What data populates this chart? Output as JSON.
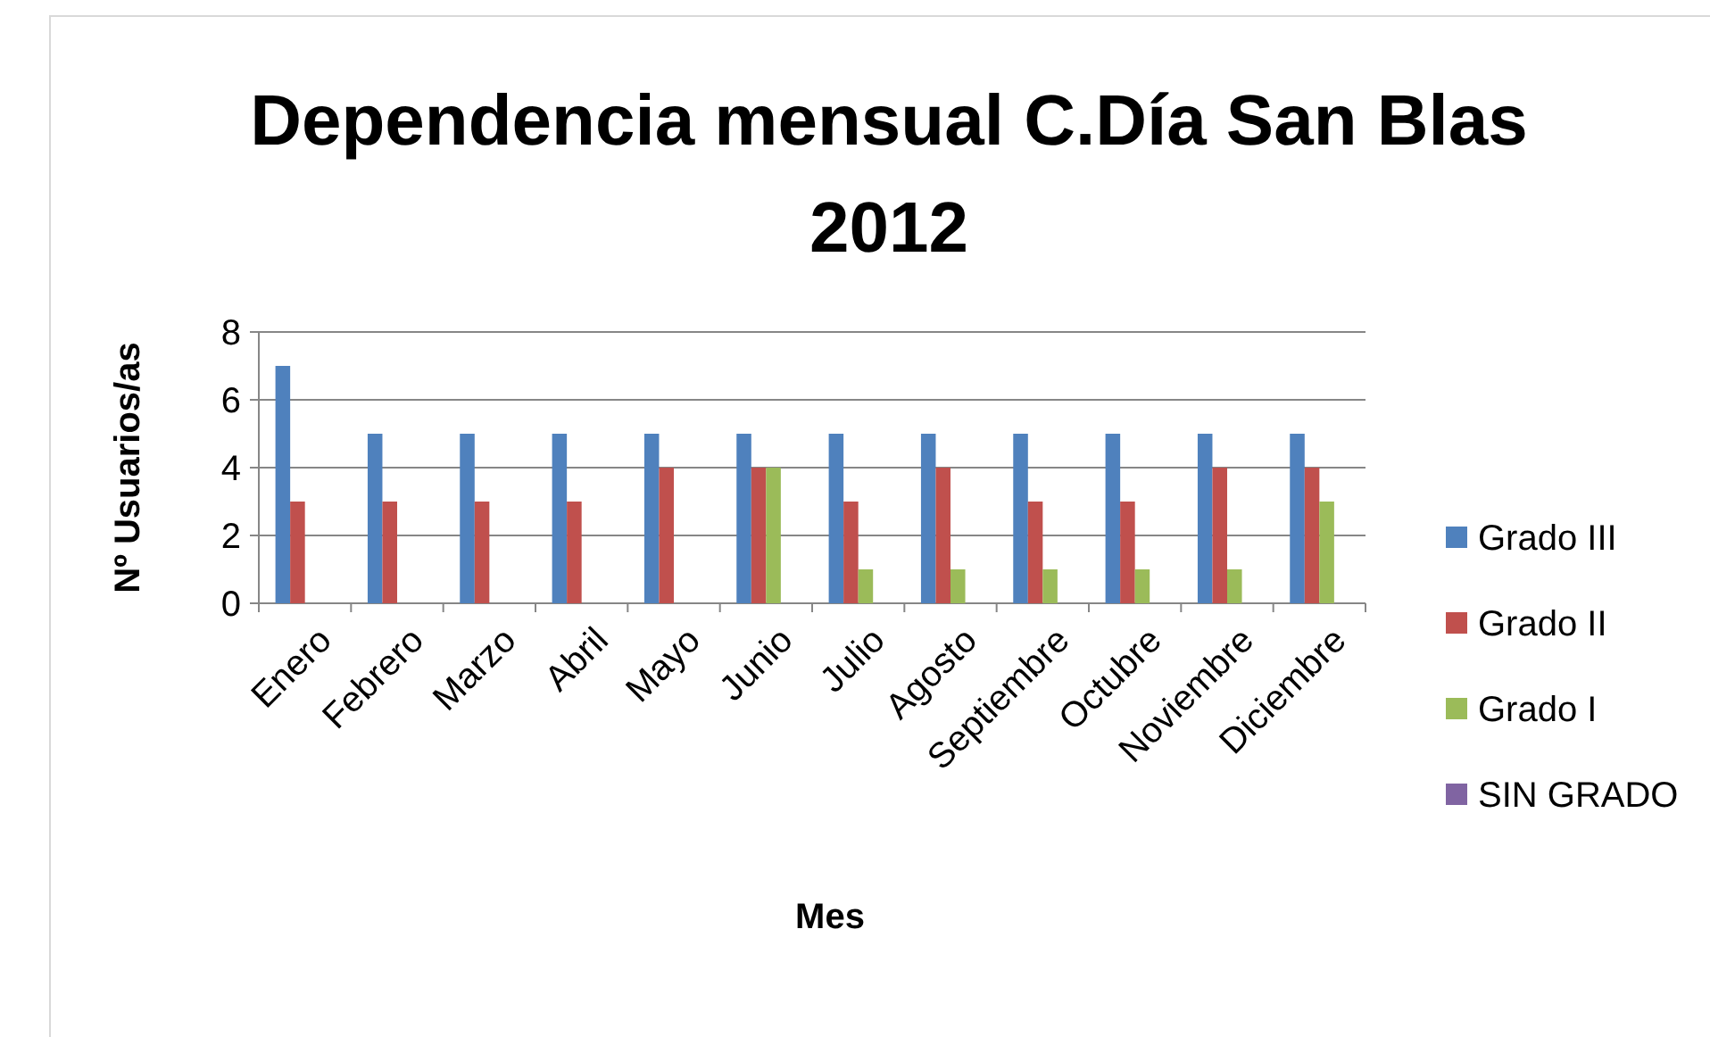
{
  "chart_data": {
    "type": "bar",
    "title": "Dependencia mensual C.Día San Blas 2012",
    "xlabel": "Mes",
    "ylabel": "Nº Usuarios/as",
    "categories": [
      "Enero",
      "Febrero",
      "Marzo",
      "Abril",
      "Mayo",
      "Junio",
      "Julio",
      "Agosto",
      "Septiembre",
      "Octubre",
      "Noviembre",
      "Diciembre"
    ],
    "series": [
      {
        "name": "Grado III",
        "color": "#4f81bd",
        "values": [
          7,
          5,
          5,
          5,
          5,
          5,
          5,
          5,
          5,
          5,
          5,
          5
        ]
      },
      {
        "name": "Grado II",
        "color": "#c0504d",
        "values": [
          3,
          3,
          3,
          3,
          4,
          4,
          3,
          4,
          3,
          3,
          4,
          4
        ]
      },
      {
        "name": "Grado I",
        "color": "#9bbb59",
        "values": [
          0,
          0,
          0,
          0,
          0,
          4,
          1,
          1,
          1,
          1,
          1,
          3
        ]
      },
      {
        "name": "SIN GRADO",
        "color": "#8064a2",
        "values": [
          0,
          0,
          0,
          0,
          0,
          0,
          0,
          0,
          0,
          0,
          0,
          0
        ]
      }
    ],
    "ylim": [
      0,
      8
    ],
    "yticks": [
      0,
      2,
      4,
      6,
      8
    ],
    "grid": "y",
    "legend": "right"
  }
}
